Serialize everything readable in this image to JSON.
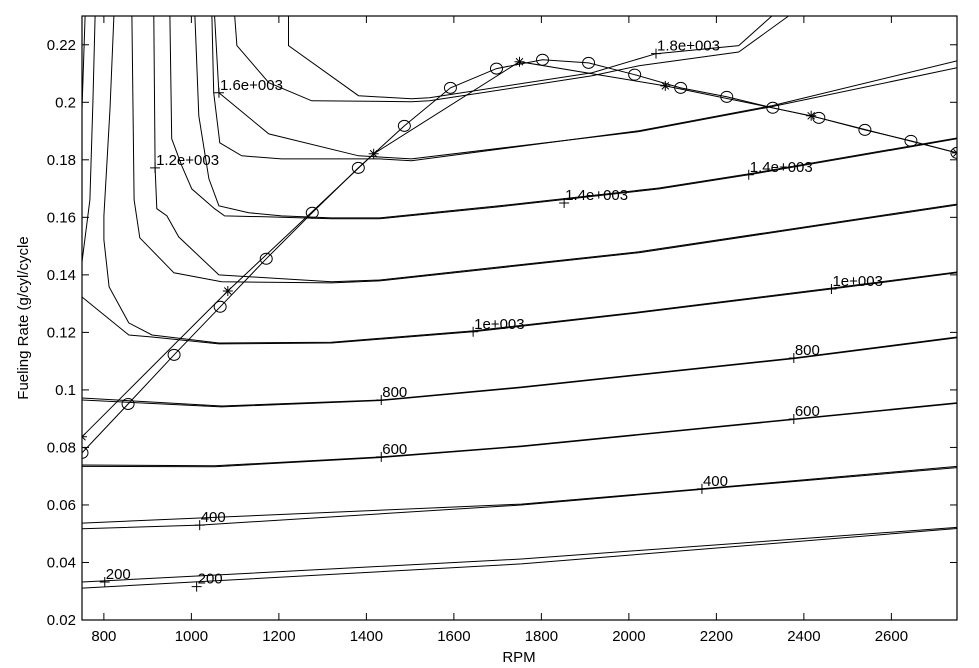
{
  "chart_data": {
    "type": "line",
    "subtype": "contour-with-overlaid-lines",
    "title": "",
    "xlabel": "RPM",
    "ylabel": "Fueling Rate (g/cyl/cycle",
    "xlim": [
      750,
      2750
    ],
    "ylim": [
      0.02,
      0.23
    ],
    "grid": false,
    "xticks": [
      800,
      1000,
      1200,
      1400,
      1600,
      1800,
      2000,
      2200,
      2400,
      2600
    ],
    "xtick_labels": [
      "800",
      "1000",
      "1200",
      "1400",
      "1600",
      "1800",
      "2000",
      "2200",
      "2400",
      "2600"
    ],
    "yticks": [
      0.02,
      0.04,
      0.06,
      0.08,
      0.1,
      0.12,
      0.14,
      0.16,
      0.18,
      0.2,
      0.22
    ],
    "ytick_labels": [
      "0.02",
      "0.04",
      "0.06",
      "0.08",
      "0.1",
      "0.12",
      "0.14",
      "0.16",
      "0.18",
      "0.2",
      "0.22"
    ],
    "line_color": "#000000",
    "contours": [
      {
        "level": 200,
        "points": [
          [
            750,
            0.0332
          ],
          [
            1754,
            0.0412
          ],
          [
            2750,
            0.0522
          ]
        ]
      },
      {
        "level": 200,
        "points": [
          [
            750,
            0.0311
          ],
          [
            1754,
            0.0395
          ],
          [
            2750,
            0.0518
          ]
        ]
      },
      {
        "level": 400,
        "points": [
          [
            750,
            0.0537
          ],
          [
            1754,
            0.0603
          ],
          [
            2167,
            0.0656
          ],
          [
            2750,
            0.0734
          ]
        ]
      },
      {
        "level": 400,
        "points": [
          [
            750,
            0.0517
          ],
          [
            1019,
            0.053
          ],
          [
            1754,
            0.06
          ],
          [
            2167,
            0.0654
          ],
          [
            2750,
            0.073
          ]
        ]
      },
      {
        "level": 600,
        "points": [
          [
            750,
            0.0739
          ],
          [
            1053,
            0.0736
          ],
          [
            1434,
            0.0767
          ],
          [
            1754,
            0.0805
          ],
          [
            2377,
            0.0899
          ],
          [
            2750,
            0.0955
          ]
        ]
      },
      {
        "level": 600,
        "points": [
          [
            750,
            0.0734
          ],
          [
            1053,
            0.0733
          ],
          [
            1434,
            0.0765
          ],
          [
            1754,
            0.0803
          ],
          [
            2377,
            0.0897
          ],
          [
            2750,
            0.0953
          ]
        ]
      },
      {
        "level": 800,
        "points": [
          [
            750,
            0.0972
          ],
          [
            1069,
            0.0944
          ],
          [
            1434,
            0.0965
          ],
          [
            1754,
            0.101
          ],
          [
            2377,
            0.1111
          ],
          [
            2750,
            0.1184
          ]
        ]
      },
      {
        "level": 800,
        "points": [
          [
            750,
            0.0965
          ],
          [
            1069,
            0.0941
          ],
          [
            1434,
            0.0963
          ],
          [
            1754,
            0.1008
          ],
          [
            2377,
            0.1109
          ],
          [
            2750,
            0.1181
          ]
        ]
      },
      {
        "level": 1000,
        "points": [
          [
            750,
            0.1323
          ],
          [
            857,
            0.1191
          ],
          [
            910,
            0.1184
          ],
          [
            1063,
            0.116
          ],
          [
            1320,
            0.1163
          ],
          [
            1644,
            0.1202
          ],
          [
            2023,
            0.1268
          ],
          [
            2463,
            0.1351
          ],
          [
            2750,
            0.1407
          ]
        ]
      },
      {
        "level": 1000,
        "points": [
          [
            823,
            0.23
          ],
          [
            814,
            0.1977
          ],
          [
            800,
            0.1605
          ],
          [
            800,
            0.1522
          ],
          [
            812,
            0.1358
          ],
          [
            857,
            0.1233
          ],
          [
            910,
            0.1191
          ],
          [
            1063,
            0.1163
          ],
          [
            1320,
            0.1166
          ],
          [
            1644,
            0.1205
          ],
          [
            2023,
            0.1271
          ],
          [
            2463,
            0.1354
          ],
          [
            2750,
            0.141
          ]
        ]
      },
      {
        "level": null,
        "points": [
          [
            757,
            0.23
          ],
          [
            750,
            0.1977
          ]
        ]
      },
      {
        "level": null,
        "points": [
          [
            780,
            0.23
          ],
          [
            775,
            0.2
          ],
          [
            768,
            0.1661
          ],
          [
            750,
            0.1445
          ]
        ]
      },
      {
        "level": 1200,
        "points": [
          [
            864,
            0.23
          ],
          [
            869,
            0.1661
          ],
          [
            882,
            0.1529
          ],
          [
            960,
            0.1407
          ],
          [
            1069,
            0.1376
          ],
          [
            1320,
            0.1372
          ],
          [
            1430,
            0.1379
          ],
          [
            2023,
            0.1477
          ],
          [
            2750,
            0.1643
          ]
        ]
      },
      {
        "level": 1200,
        "points": [
          [
            914,
            0.23
          ],
          [
            917,
            0.1772
          ],
          [
            921,
            0.163
          ],
          [
            944,
            0.1605
          ],
          [
            971,
            0.1532
          ],
          [
            1063,
            0.14
          ],
          [
            1320,
            0.1376
          ],
          [
            1430,
            0.1382
          ],
          [
            2023,
            0.148
          ],
          [
            2750,
            0.1646
          ]
        ]
      },
      {
        "level": 1400,
        "points": [
          [
            951,
            0.23
          ],
          [
            955,
            0.1873
          ],
          [
            978,
            0.1779
          ],
          [
            1001,
            0.1699
          ],
          [
            1053,
            0.163
          ],
          [
            1076,
            0.1605
          ],
          [
            1168,
            0.1602
          ],
          [
            1320,
            0.1595
          ],
          [
            1430,
            0.1595
          ],
          [
            1704,
            0.1637
          ],
          [
            2069,
            0.1699
          ],
          [
            2274,
            0.1748
          ],
          [
            2750,
            0.1873
          ]
        ]
      },
      {
        "level": 1400,
        "points": [
          [
            1008,
            0.23
          ],
          [
            1017,
            0.1953
          ],
          [
            1040,
            0.1734
          ],
          [
            1063,
            0.164
          ],
          [
            1131,
            0.1616
          ],
          [
            1206,
            0.1605
          ],
          [
            1320,
            0.1598
          ],
          [
            1430,
            0.1598
          ],
          [
            1704,
            0.164
          ],
          [
            2069,
            0.1702
          ],
          [
            2274,
            0.1751
          ],
          [
            2750,
            0.1876
          ]
        ]
      },
      {
        "level": 1600,
        "points": [
          [
            1047,
            0.23
          ],
          [
            1051,
            0.2033
          ],
          [
            1065,
            0.1859
          ],
          [
            1115,
            0.1814
          ],
          [
            1206,
            0.1803
          ],
          [
            1430,
            0.1803
          ],
          [
            1503,
            0.1797
          ],
          [
            2023,
            0.1901
          ],
          [
            2327,
            0.1988
          ],
          [
            2750,
            0.2144
          ]
        ]
      },
      {
        "level": 1600,
        "points": [
          [
            1053,
            0.23
          ],
          [
            1063,
            0.2033
          ],
          [
            1085,
            0.2005
          ],
          [
            1177,
            0.189
          ],
          [
            1382,
            0.1814
          ],
          [
            1503,
            0.1803
          ],
          [
            2023,
            0.1898
          ],
          [
            2327,
            0.1985
          ],
          [
            2750,
            0.212
          ]
        ]
      },
      {
        "level": 1800,
        "points": [
          [
            1222,
            0.23
          ],
          [
            1222,
            0.2197
          ],
          [
            1382,
            0.2023
          ],
          [
            1503,
            0.2012
          ],
          [
            1544,
            0.2016
          ],
          [
            1916,
            0.2103
          ],
          [
            2062,
            0.2169
          ],
          [
            2251,
            0.2197
          ],
          [
            2327,
            0.23
          ]
        ]
      },
      {
        "level": 1800,
        "points": [
          [
            1099,
            0.23
          ],
          [
            1104,
            0.2197
          ],
          [
            1177,
            0.2068
          ],
          [
            1275,
            0.2005
          ],
          [
            1503,
            0.2002
          ],
          [
            1544,
            0.2005
          ],
          [
            1916,
            0.2092
          ],
          [
            2023,
            0.2127
          ],
          [
            2251,
            0.2175
          ],
          [
            2365,
            0.23
          ]
        ]
      }
    ],
    "contour_labels": [
      {
        "text": "200",
        "x": 802,
        "y": 0.0332
      },
      {
        "text": "200",
        "x": 1012,
        "y": 0.0316
      },
      {
        "text": "400",
        "x": 1019,
        "y": 0.053
      },
      {
        "text": "400",
        "x": 2167,
        "y": 0.0656
      },
      {
        "text": "600",
        "x": 1434,
        "y": 0.0767
      },
      {
        "text": "600",
        "x": 2377,
        "y": 0.0899
      },
      {
        "text": "800",
        "x": 1434,
        "y": 0.0965
      },
      {
        "text": "800",
        "x": 2377,
        "y": 0.1111
      },
      {
        "text": "1e+003",
        "x": 1644,
        "y": 0.1202
      },
      {
        "text": "1e+003",
        "x": 2463,
        "y": 0.1351
      },
      {
        "text": "1.2e+003",
        "x": 917,
        "y": 0.1772
      },
      {
        "text": "1.4e+003",
        "x": 1852,
        "y": 0.165
      },
      {
        "text": "1.4e+003",
        "x": 2274,
        "y": 0.1748
      },
      {
        "text": "1.6e+003",
        "x": 1063,
        "y": 0.2033
      },
      {
        "text": "1.8e+003",
        "x": 2062,
        "y": 0.2169
      }
    ],
    "series": [
      {
        "name": "circle-marker line",
        "marker": "circle",
        "x": [
          750,
          855.3,
          960.5,
          1065.8,
          1171.1,
          1276.3,
          1381.6,
          1486.8,
          1592.1,
          1697.4,
          1802.6,
          1907.9,
          2013.2,
          2118.4,
          2223.7,
          2328.9,
          2434.2,
          2539.5,
          2644.7,
          2750
        ],
        "y": [
          0.0781,
          0.0951,
          0.1122,
          0.1289,
          0.1456,
          0.1616,
          0.1772,
          0.1918,
          0.205,
          0.2117,
          0.2148,
          0.2137,
          0.2096,
          0.205,
          0.2019,
          0.1981,
          0.1946,
          0.1904,
          0.1866,
          0.1824
        ]
      },
      {
        "name": "star-marker line",
        "marker": "star",
        "x": [
          750,
          1083.3,
          1416.7,
          1750,
          2083.3,
          2416.7,
          2750
        ],
        "y": [
          0.0837,
          0.1344,
          0.1821,
          0.2141,
          0.2057,
          0.1953,
          0.1824
        ]
      }
    ]
  }
}
